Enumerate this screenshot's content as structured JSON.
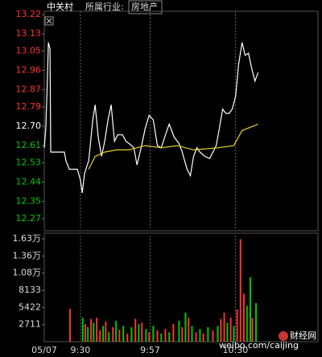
{
  "header": {
    "name": "中关村",
    "industry_label": "所属行业:",
    "industry": "房地产"
  },
  "chart_data": [
    {
      "type": "line",
      "xlim": [
        -14,
        92
      ],
      "ylim": [
        12.27,
        13.22
      ],
      "yticks": [
        {
          "value": 13.22,
          "label": "13.22"
        },
        13.13,
        13.05,
        12.96,
        12.87,
        12.79,
        {
          "value": 12.7,
          "label": "12.70"
        },
        12.61,
        12.53,
        12.44,
        12.35,
        12.27
      ],
      "ytick_colors": [
        "#ff3232",
        "#ff3232",
        "#ff3232",
        "#ff3232",
        "#ff3232",
        "#ff3232",
        "#ffffff",
        "#00c800",
        "#00c800",
        "#00c800",
        "#00c800",
        "#00c800"
      ],
      "grid": true,
      "series": [
        {
          "color": "#ffffff",
          "x": [
            -14,
            -13.4,
            -12.8,
            -12.4,
            -11.8,
            -11.5,
            -10.6,
            -6.2,
            -5.6,
            -4.3,
            -1.2,
            0,
            0.7,
            1.6,
            3.2,
            4.8,
            5.7,
            6.9,
            8.2,
            9.4,
            10.7,
            11.9,
            13.2,
            14.4,
            16.3,
            17.6,
            18.8,
            20.7,
            21.9,
            23.5,
            25.1,
            26.6,
            28.2,
            29.8,
            31.3,
            33.2,
            34.4,
            36.3,
            38.2,
            39.4,
            41.3,
            42.6,
            43.8,
            45.1,
            46.3,
            48.2,
            50.1,
            51.3,
            52.6,
            53.8,
            55.1,
            56.3,
            57.6,
            58.8,
            60.1,
            61.3,
            62.6,
            63.8,
            65.1,
            66.3,
            67.6,
            68.8
          ],
          "values": [
            12.6,
            12.69,
            12.91,
            13.09,
            13.06,
            12.58,
            12.58,
            12.58,
            12.54,
            12.5,
            12.5,
            12.45,
            12.39,
            12.48,
            12.54,
            12.73,
            12.8,
            12.65,
            12.56,
            12.63,
            12.73,
            12.8,
            12.63,
            12.66,
            12.66,
            12.63,
            12.62,
            12.6,
            12.52,
            12.6,
            12.69,
            12.75,
            12.73,
            12.61,
            12.6,
            12.67,
            12.71,
            12.65,
            12.62,
            12.58,
            12.5,
            12.47,
            12.56,
            12.6,
            12.58,
            12.56,
            12.55,
            12.58,
            12.61,
            12.69,
            12.78,
            12.76,
            12.76,
            12.78,
            12.84,
            12.99,
            13.09,
            13.03,
            13.04,
            12.97,
            12.91,
            12.95
          ]
        },
        {
          "color": "#e6d21e",
          "x": [
            3.2,
            5.7,
            9.4,
            14.1,
            18.8,
            25.1,
            31.3,
            37.5,
            43.8,
            53.2,
            59.4,
            62.6,
            68.8
          ],
          "values": [
            12.5,
            12.56,
            12.58,
            12.59,
            12.59,
            12.61,
            12.6,
            12.61,
            12.59,
            12.6,
            12.61,
            12.68,
            12.71
          ]
        }
      ]
    },
    {
      "type": "bar",
      "xlim": [
        -14,
        92
      ],
      "ylim": [
        0,
        16266
      ],
      "yticks": [
        {
          "value": 16266,
          "label": "1.63万"
        },
        {
          "value": 13555,
          "label": "1.36万"
        },
        {
          "value": 10844,
          "label": "1.08万"
        },
        8133,
        5422,
        2711
      ],
      "xticks": [
        {
          "value": -14,
          "label": "05/07"
        },
        {
          "value": 0,
          "label": "9:30"
        },
        {
          "value": 27,
          "label": "9:57"
        },
        {
          "value": 60,
          "label": "10:30"
        }
      ],
      "x": [
        -4,
        0.9,
        1.9,
        2.9,
        4.1,
        5.1,
        6.3,
        7.6,
        8.8,
        9.8,
        11,
        12.6,
        13.8,
        15.1,
        16.6,
        18.2,
        19.8,
        21.3,
        22.6,
        23.8,
        25.4,
        26.6,
        28.2,
        29.8,
        31.3,
        32.9,
        34.4,
        36,
        38.2,
        39.4,
        40.7,
        41.9,
        43.2,
        44.8,
        46.3,
        47.6,
        49.4,
        51.3,
        53.2,
        54.4,
        55.7,
        56.9,
        58.2,
        59.4,
        60.7,
        62,
        63.3,
        64.5,
        65.8,
        66.6,
        68
      ],
      "values": [
        5200,
        3800,
        2800,
        2300,
        3600,
        3000,
        3800,
        1800,
        2500,
        3200,
        1500,
        2300,
        3300,
        1900,
        2500,
        1300,
        2300,
        3600,
        2800,
        3000,
        2000,
        1500,
        2500,
        1800,
        1300,
        2000,
        1500,
        2800,
        3300,
        2300,
        4600,
        3800,
        2500,
        1500,
        2000,
        1300,
        2300,
        1800,
        2500,
        3600,
        4600,
        3000,
        3800,
        2500,
        5100,
        16200,
        7600,
        5700,
        10200,
        3800,
        6100
      ],
      "colors": [
        "#ff3232",
        "#00c800",
        "#ff3232",
        "#00c800",
        "#ff3232",
        "#00c800",
        "#ff3232",
        "#ff3232",
        "#00c800",
        "#ff3232",
        "#00c800",
        "#ff3232",
        "#00c800",
        "#ff3232",
        "#00c800",
        "#ff3232",
        "#00c800",
        "#ff3232",
        "#00c800",
        "#ff3232",
        "#00c800",
        "#ff3232",
        "#00c800",
        "#ff3232",
        "#00c800",
        "#ff3232",
        "#00c800",
        "#ff3232",
        "#00c800",
        "#ff3232",
        "#00c800",
        "#ff3232",
        "#00c800",
        "#ff3232",
        "#00c800",
        "#ff3232",
        "#00c800",
        "#ff3232",
        "#00c800",
        "#ff3232",
        "#ff3232",
        "#00c800",
        "#ff3232",
        "#00c800",
        "#ff3232",
        "#ff3232",
        "#ff3232",
        "#00c800",
        "#00c800",
        "#ff3232",
        "#00c800"
      ]
    }
  ],
  "watermark": {
    "brand": "财经网",
    "url": "weibo.com/caijing"
  }
}
